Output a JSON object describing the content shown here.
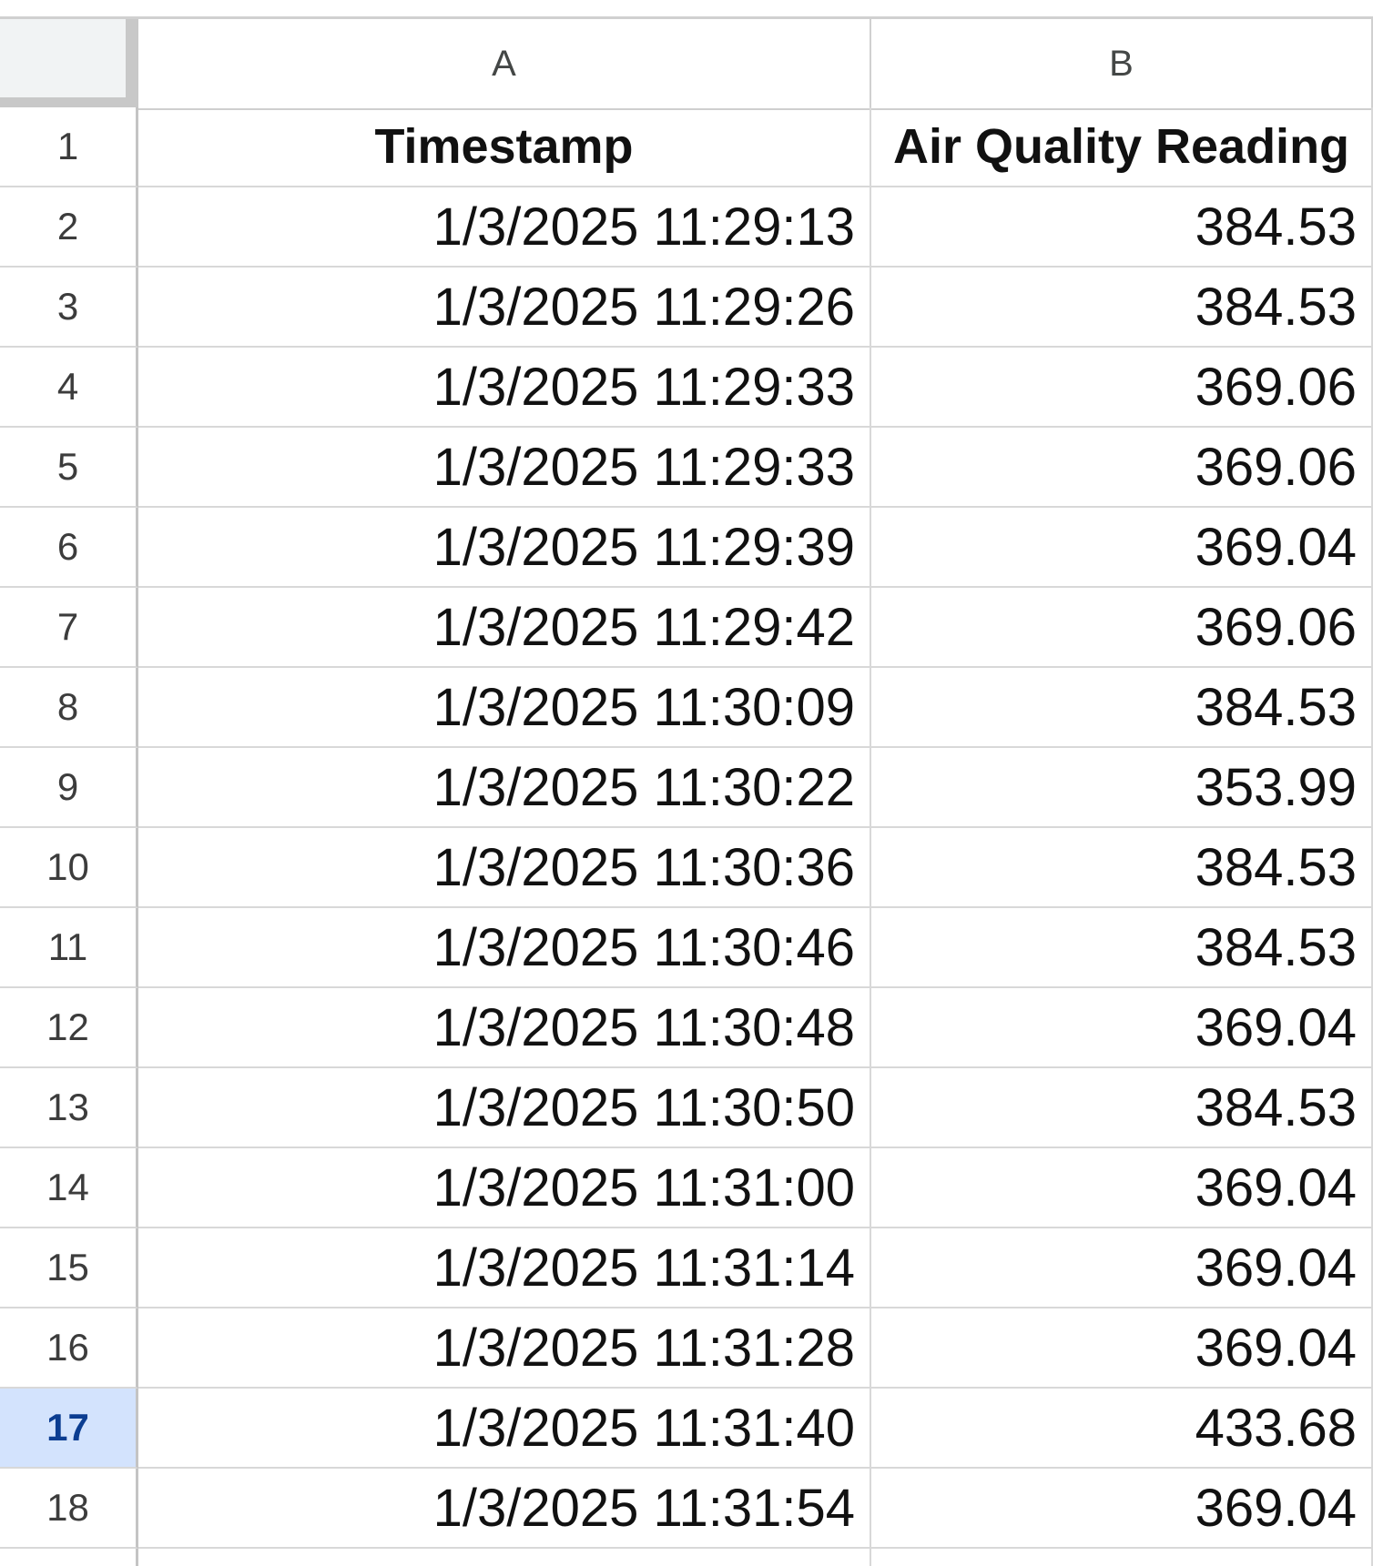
{
  "columns": {
    "a": "A",
    "b": "B"
  },
  "header_row": {
    "num": "1",
    "timestamp": "Timestamp",
    "reading": "Air Quality Reading"
  },
  "rows": [
    {
      "num": "2",
      "timestamp": "1/3/2025 11:29:13",
      "reading": "384.53"
    },
    {
      "num": "3",
      "timestamp": "1/3/2025 11:29:26",
      "reading": "384.53"
    },
    {
      "num": "4",
      "timestamp": "1/3/2025 11:29:33",
      "reading": "369.06"
    },
    {
      "num": "5",
      "timestamp": "1/3/2025 11:29:33",
      "reading": "369.06"
    },
    {
      "num": "6",
      "timestamp": "1/3/2025 11:29:39",
      "reading": "369.04"
    },
    {
      "num": "7",
      "timestamp": "1/3/2025 11:29:42",
      "reading": "369.06"
    },
    {
      "num": "8",
      "timestamp": "1/3/2025 11:30:09",
      "reading": "384.53"
    },
    {
      "num": "9",
      "timestamp": "1/3/2025 11:30:22",
      "reading": "353.99"
    },
    {
      "num": "10",
      "timestamp": "1/3/2025 11:30:36",
      "reading": "384.53"
    },
    {
      "num": "11",
      "timestamp": "1/3/2025 11:30:46",
      "reading": "384.53"
    },
    {
      "num": "12",
      "timestamp": "1/3/2025 11:30:48",
      "reading": "369.04"
    },
    {
      "num": "13",
      "timestamp": "1/3/2025 11:30:50",
      "reading": "384.53"
    },
    {
      "num": "14",
      "timestamp": "1/3/2025 11:31:00",
      "reading": "369.04"
    },
    {
      "num": "15",
      "timestamp": "1/3/2025 11:31:14",
      "reading": "369.04"
    },
    {
      "num": "16",
      "timestamp": "1/3/2025 11:31:28",
      "reading": "369.04"
    },
    {
      "num": "17",
      "timestamp": "1/3/2025 11:31:40",
      "reading": "433.68",
      "selected": true
    },
    {
      "num": "18",
      "timestamp": "1/3/2025 11:31:54",
      "reading": "369.04"
    }
  ],
  "colors": {
    "selection": "#1a73e8",
    "selected_row_header": "#d3e3fd"
  }
}
